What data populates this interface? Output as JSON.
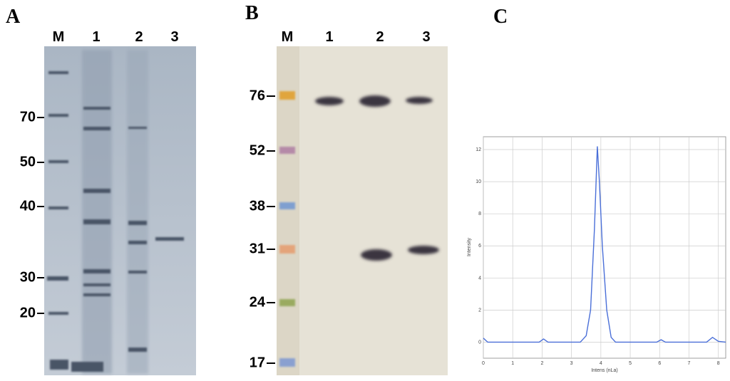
{
  "panels": {
    "a": {
      "label": "A",
      "lanes": [
        "M",
        "1",
        "2",
        "3"
      ],
      "markers": [
        "70",
        "50",
        "40",
        "30",
        "20"
      ]
    },
    "b": {
      "label": "B",
      "lanes": [
        "M",
        "1",
        "2",
        "3"
      ],
      "markers": [
        "76",
        "52",
        "38",
        "31",
        "24",
        "17"
      ]
    },
    "c": {
      "label": "C",
      "chart_data": {
        "type": "line",
        "y_label": "Intensity",
        "x_label": "Intens (nLa)",
        "x": [
          0,
          0.15,
          1,
          1.9,
          2.05,
          2.2,
          3.3,
          3.5,
          3.65,
          3.78,
          3.88,
          3.95,
          4.05,
          4.2,
          4.35,
          4.5,
          5.9,
          6.05,
          6.2,
          7.6,
          7.8,
          8.0,
          8.25
        ],
        "series": [
          {
            "color": "#4a6fd8",
            "values": [
              0.25,
              0,
              0,
              0,
              0.2,
              0,
              0,
              0.4,
              2,
              7,
              12.2,
              10,
              6,
              2,
              0.3,
              0,
              0,
              0.15,
              0,
              0,
              0.3,
              0.05,
              0
            ]
          }
        ],
        "xlim": [
          0,
          8.25
        ],
        "ylim": [
          -1,
          12.8
        ],
        "xticks": [
          0,
          1,
          2,
          3,
          4,
          5,
          6,
          7,
          8
        ],
        "yticks": [
          0,
          2,
          4,
          6,
          8,
          10,
          12
        ],
        "grid": true
      }
    }
  }
}
